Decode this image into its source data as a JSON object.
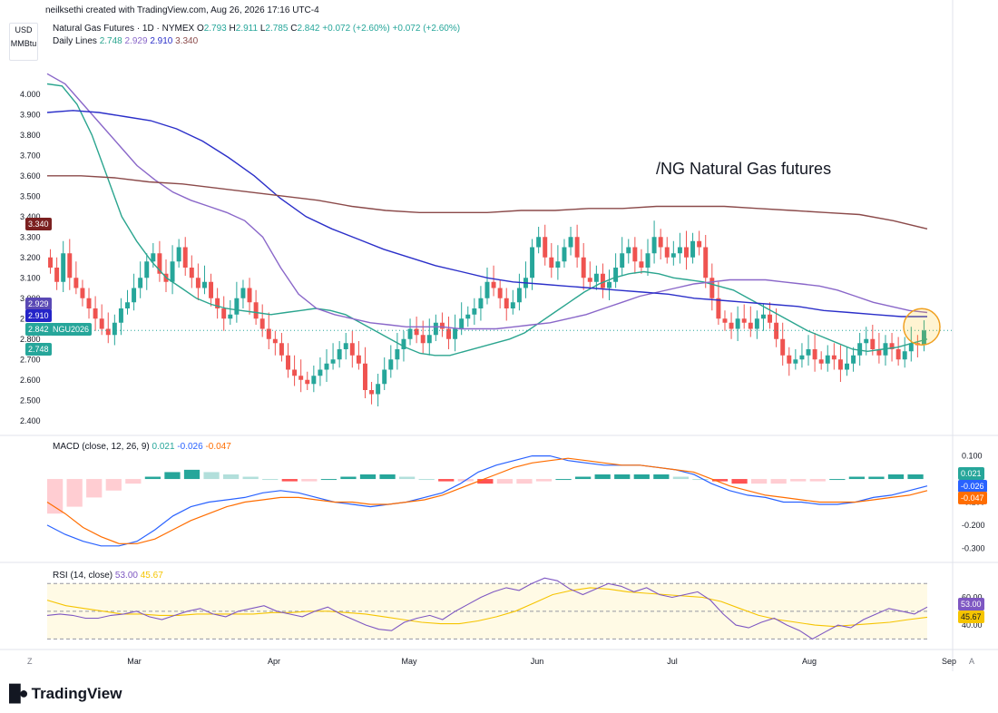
{
  "watermark": "neilksethi created with TradingView.com, Aug 26, 2026 17:16 UTC-4",
  "unit_box": {
    "currency": "USD",
    "unit": "MMBtu"
  },
  "legend": {
    "symbol": "Natural Gas Futures · 1D · NYMEX",
    "ohlc": {
      "o_label": "O",
      "o": "2.793",
      "h_label": "H",
      "h": "2.911",
      "l_label": "L",
      "l": "2.785",
      "c_label": "C",
      "c": "2.842",
      "chg": "+0.072 (+2.60%)",
      "chg2": "+0.072 (+2.60%)"
    },
    "lines_label": "Daily Lines",
    "lines": [
      "2.748",
      "2.929",
      "2.910",
      "3.340"
    ]
  },
  "annotation": "/NG Natural Gas futures",
  "price_badges": [
    {
      "text": "3.340",
      "color": "#7b2020"
    },
    {
      "text": "2.929",
      "color": "#5a49b5"
    },
    {
      "text": "2.910",
      "color": "#2424c8"
    },
    {
      "text": "2.842",
      "color": "#26a69a"
    },
    {
      "text": "NGU2026",
      "color": "#26a69a"
    },
    {
      "text": "2.748",
      "color": "#26a69a"
    }
  ],
  "macd_legend": {
    "label": "MACD (close, 12, 26, 9)",
    "v1": "0.021",
    "v2": "-0.026",
    "v3": "-0.047"
  },
  "macd_badges": [
    {
      "text": "0.021",
      "color": "#26a69a"
    },
    {
      "text": "-0.026",
      "color": "#2962ff"
    },
    {
      "text": "-0.047",
      "color": "#ff6d00"
    }
  ],
  "rsi_legend": {
    "label": "RSI (14, close)",
    "v1": "53.00",
    "v2": "45.67"
  },
  "rsi_badges": [
    {
      "text": "53.00",
      "color": "#7e57c2"
    },
    {
      "text": "45.67",
      "color": "#f5c400"
    }
  ],
  "time_axis": [
    "Mar",
    "Apr",
    "May",
    "Jun",
    "Jul",
    "Aug",
    "Sep"
  ],
  "corner_labels": {
    "left": "Z",
    "right": "A"
  },
  "brand": "TradingView",
  "colors": {
    "up": "#26a69a",
    "down": "#ef5350",
    "ma_teal": "#2ba58f",
    "ma_purple": "#8a67c9",
    "ma_blue": "#2b2fc9",
    "ma_maroon": "#8b4a4a",
    "macd": "#2962ff",
    "signal": "#ff6d00",
    "rsi": "#7e57c2",
    "rsi_ma": "#f5c400"
  },
  "chart_data": [
    {
      "type": "candlestick",
      "title": "Natural Gas Futures · 1D · NYMEX",
      "ylim": [
        2.35,
        4.15
      ],
      "yticks": [
        "4.000",
        "3.900",
        "3.800",
        "3.700",
        "3.600",
        "3.500",
        "3.400",
        "3.300",
        "3.200",
        "3.100",
        "3.000",
        "2.900",
        "2.800",
        "2.700",
        "2.600",
        "2.500",
        "2.400"
      ],
      "closes": [
        3.15,
        3.08,
        3.22,
        3.1,
        3.05,
        3.0,
        2.95,
        2.9,
        2.85,
        2.82,
        2.88,
        2.95,
        2.98,
        3.05,
        3.1,
        3.18,
        3.22,
        3.12,
        3.08,
        3.18,
        3.25,
        3.15,
        3.1,
        3.05,
        3.08,
        3.0,
        2.95,
        2.9,
        2.92,
        3.0,
        3.05,
        2.98,
        2.9,
        2.85,
        2.8,
        2.78,
        2.72,
        2.65,
        2.62,
        2.6,
        2.58,
        2.62,
        2.65,
        2.68,
        2.7,
        2.75,
        2.78,
        2.72,
        2.68,
        2.55,
        2.53,
        2.58,
        2.65,
        2.7,
        2.75,
        2.8,
        2.85,
        2.82,
        2.78,
        2.82,
        2.88,
        2.85,
        2.8,
        2.85,
        2.9,
        2.92,
        2.95,
        3.0,
        3.08,
        3.05,
        3.0,
        2.95,
        2.98,
        3.05,
        3.1,
        3.25,
        3.3,
        3.2,
        3.15,
        3.18,
        3.25,
        3.3,
        3.2,
        3.1,
        3.08,
        3.12,
        3.05,
        3.08,
        3.15,
        3.22,
        3.25,
        3.18,
        3.15,
        3.22,
        3.3,
        3.25,
        3.2,
        3.22,
        3.25,
        3.2,
        3.28,
        3.25,
        3.1,
        3.0,
        2.9,
        2.88,
        2.85,
        2.9,
        2.88,
        2.85,
        2.9,
        2.92,
        2.88,
        2.8,
        2.72,
        2.68,
        2.7,
        2.72,
        2.75,
        2.7,
        2.68,
        2.72,
        2.7,
        2.65,
        2.68,
        2.72,
        2.78,
        2.8,
        2.75,
        2.72,
        2.78,
        2.75,
        2.7,
        2.74,
        2.78,
        2.77,
        2.842
      ],
      "series": [
        {
          "name": "2.748",
          "values": [
            4.05,
            4.04,
            3.95,
            3.8,
            3.6,
            3.4,
            3.28,
            3.18,
            3.1,
            3.05,
            3.0,
            2.97,
            2.95,
            2.94,
            2.93,
            2.92,
            2.93,
            2.94,
            2.95,
            2.94,
            2.92,
            2.88,
            2.84,
            2.8,
            2.76,
            2.73,
            2.72,
            2.72,
            2.74,
            2.76,
            2.78,
            2.8,
            2.83,
            2.88,
            2.93,
            2.98,
            3.03,
            3.07,
            3.1,
            3.12,
            3.13,
            3.12,
            3.1,
            3.09,
            3.08,
            3.06,
            3.04,
            3.0,
            2.96,
            2.92,
            2.88,
            2.84,
            2.81,
            2.78,
            2.75,
            2.74,
            2.75,
            2.76,
            2.78,
            2.8
          ]
        },
        {
          "name": "2.929",
          "values": [
            4.1,
            4.05,
            3.95,
            3.85,
            3.75,
            3.65,
            3.58,
            3.52,
            3.48,
            3.45,
            3.42,
            3.38,
            3.3,
            3.15,
            3.02,
            2.95,
            2.92,
            2.9,
            2.88,
            2.87,
            2.86,
            2.86,
            2.86,
            2.85,
            2.85,
            2.85,
            2.86,
            2.87,
            2.88,
            2.9,
            2.92,
            2.95,
            2.98,
            3.01,
            3.03,
            3.05,
            3.07,
            3.08,
            3.09,
            3.09,
            3.09,
            3.08,
            3.07,
            3.06,
            3.04,
            3.01,
            2.98,
            2.96,
            2.94,
            2.93
          ]
        },
        {
          "name": "2.910",
          "values": [
            3.91,
            3.92,
            3.91,
            3.89,
            3.87,
            3.83,
            3.77,
            3.69,
            3.6,
            3.49,
            3.4,
            3.34,
            3.29,
            3.24,
            3.2,
            3.16,
            3.13,
            3.1,
            3.08,
            3.07,
            3.06,
            3.05,
            3.04,
            3.03,
            3.02,
            3.0,
            2.99,
            2.98,
            2.97,
            2.96,
            2.94,
            2.93,
            2.92,
            2.91,
            2.91
          ]
        },
        {
          "name": "3.340",
          "values": [
            3.6,
            3.6,
            3.59,
            3.57,
            3.56,
            3.54,
            3.52,
            3.5,
            3.48,
            3.45,
            3.43,
            3.42,
            3.42,
            3.42,
            3.43,
            3.43,
            3.44,
            3.44,
            3.45,
            3.45,
            3.45,
            3.44,
            3.43,
            3.42,
            3.41,
            3.38,
            3.34
          ]
        }
      ]
    },
    {
      "type": "macd",
      "title": "MACD (close, 12, 26, 9)",
      "ylim": [
        -0.33,
        0.13
      ],
      "yticks": [
        "0.100",
        "0.000",
        "-0.100",
        "-0.200",
        "-0.300"
      ],
      "series": [
        {
          "name": "MACD",
          "values": [
            -0.2,
            -0.24,
            -0.27,
            -0.29,
            -0.29,
            -0.27,
            -0.22,
            -0.16,
            -0.12,
            -0.1,
            -0.09,
            -0.08,
            -0.06,
            -0.05,
            -0.06,
            -0.08,
            -0.1,
            -0.11,
            -0.12,
            -0.11,
            -0.1,
            -0.08,
            -0.06,
            -0.02,
            0.03,
            0.06,
            0.08,
            0.1,
            0.1,
            0.08,
            0.07,
            0.06,
            0.06,
            0.06,
            0.05,
            0.04,
            0.02,
            -0.02,
            -0.05,
            -0.07,
            -0.08,
            -0.1,
            -0.1,
            -0.11,
            -0.11,
            -0.1,
            -0.08,
            -0.07,
            -0.05,
            -0.03
          ]
        },
        {
          "name": "Signal",
          "values": [
            -0.1,
            -0.15,
            -0.21,
            -0.25,
            -0.28,
            -0.28,
            -0.26,
            -0.22,
            -0.18,
            -0.15,
            -0.12,
            -0.1,
            -0.09,
            -0.08,
            -0.08,
            -0.09,
            -0.1,
            -0.1,
            -0.11,
            -0.11,
            -0.1,
            -0.09,
            -0.07,
            -0.04,
            -0.01,
            0.02,
            0.05,
            0.07,
            0.08,
            0.09,
            0.08,
            0.07,
            0.06,
            0.06,
            0.05,
            0.04,
            0.03,
            0.0,
            -0.03,
            -0.05,
            -0.07,
            -0.08,
            -0.09,
            -0.1,
            -0.1,
            -0.1,
            -0.09,
            -0.08,
            -0.07,
            -0.05
          ]
        },
        {
          "name": "Histogram",
          "values": [
            -0.15,
            -0.12,
            -0.08,
            -0.05,
            -0.02,
            0.01,
            0.03,
            0.04,
            0.03,
            0.02,
            0.01,
            0.0,
            -0.01,
            -0.01,
            0.0,
            0.01,
            0.02,
            0.02,
            0.01,
            0.0,
            -0.01,
            -0.01,
            -0.02,
            -0.02,
            -0.02,
            -0.01,
            0.0,
            0.01,
            0.02,
            0.02,
            0.02,
            0.02,
            0.01,
            0.0,
            -0.01,
            -0.02,
            -0.02,
            -0.02,
            -0.01,
            -0.01,
            0.0,
            0.01,
            0.01,
            0.02,
            0.02
          ]
        }
      ]
    },
    {
      "type": "rsi",
      "title": "RSI (14, close)",
      "ylim": [
        25,
        80
      ],
      "yticks": [
        "60.00",
        "40.00"
      ],
      "series": [
        {
          "name": "RSI",
          "values": [
            47,
            48,
            47,
            45,
            45,
            47,
            48,
            50,
            46,
            44,
            47,
            50,
            52,
            48,
            46,
            50,
            52,
            54,
            50,
            48,
            46,
            50,
            53,
            48,
            44,
            40,
            37,
            36,
            42,
            45,
            47,
            44,
            50,
            55,
            60,
            64,
            67,
            65,
            70,
            74,
            72,
            66,
            62,
            66,
            70,
            68,
            64,
            67,
            62,
            60,
            62,
            64,
            58,
            48,
            40,
            38,
            42,
            45,
            40,
            36,
            30,
            35,
            40,
            38,
            44,
            48,
            52,
            50,
            48,
            53
          ]
        },
        {
          "name": "RSI MA",
          "values": [
            58,
            54,
            52,
            50,
            48,
            48,
            47,
            47,
            48,
            48,
            48,
            48,
            49,
            49,
            50,
            50,
            49,
            48,
            46,
            44,
            42,
            41,
            41,
            43,
            46,
            50,
            56,
            62,
            65,
            67,
            66,
            64,
            63,
            62,
            61,
            60,
            57,
            52,
            47,
            44,
            42,
            40,
            39,
            40,
            41,
            42,
            44,
            45.67
          ]
        }
      ]
    }
  ]
}
